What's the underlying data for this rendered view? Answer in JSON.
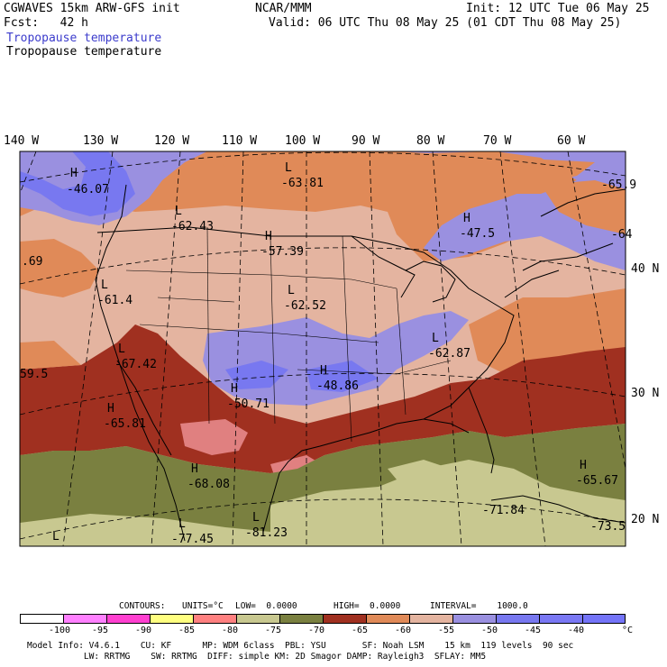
{
  "header": {
    "left1": "CGWAVES 15km ARW-GFS init",
    "left2": "Fcst:   42 h",
    "center": "NCAR/MMM",
    "init": "Init: 12 UTC Tue 06 May 25",
    "valid": "Valid: 06 UTC Thu 08 May 25 (01 CDT Thu 08 May 25)",
    "field_blue": "Tropopause temperature",
    "field_black": "Tropopause temperature"
  },
  "longitude_labels": [
    "140 W",
    "130 W",
    "120 W",
    "110 W",
    "100 W",
    "90 W",
    "80 W",
    "70 W",
    "60 W"
  ],
  "latitude_labels": [
    "40 N",
    "30 N",
    "20 N"
  ],
  "centers": [
    {
      "letter": "H",
      "value": "-46.07"
    },
    {
      "letter": "L",
      "value": "-63.81"
    },
    {
      "letter": "L",
      "value": "-62.43"
    },
    {
      "letter": "H",
      "value": "-57.39"
    },
    {
      "letter": "H",
      "value": "-47.5"
    },
    {
      "letter": "L",
      "value": "-62.52"
    },
    {
      "letter": "L",
      "value": "-61.4"
    },
    {
      "letter": "L",
      "value": "-67.42"
    },
    {
      "letter": "H",
      "value": "-48.86"
    },
    {
      "letter": "H",
      "value": "-50.71"
    },
    {
      "letter": "L",
      "value": "-62.87"
    },
    {
      "letter": "H",
      "value": "-65.81"
    },
    {
      "letter": "H",
      "value": "-68.08"
    },
    {
      "letter": "H",
      "value": "-65.67"
    },
    {
      "letter": "L",
      "value": "-81.23"
    },
    {
      "letter": "",
      "value": "-71.84"
    },
    {
      "letter": "L",
      "value": "-77.45"
    },
    {
      "letter": "",
      "value": "-73.5"
    },
    {
      "letter": "",
      "value": "-65.9"
    },
    {
      "letter": "",
      "value": "-64"
    },
    {
      "letter": "",
      "value": ".69"
    },
    {
      "letter": "",
      "value": "59.5"
    },
    {
      "letter": "L",
      "value": ""
    }
  ],
  "contour_info": {
    "contours": "CONTOURS:",
    "units": "UNITS=°C",
    "low": "LOW=  0.0000",
    "high": "HIGH=  0.0000",
    "interval": "INTERVAL=    1000.0"
  },
  "colorbar": {
    "levels": [
      "-100",
      "-95",
      "-90",
      "-85",
      "-80",
      "-75",
      "-70",
      "-65",
      "-60",
      "-55",
      "-50",
      "-45",
      "-40"
    ],
    "unit": "°C",
    "colors": [
      "#ffffff",
      "#ff80ff",
      "#ff40d0",
      "#ffff80",
      "#ff8080",
      "#c8c890",
      "#7a8040",
      "#a03020",
      "#e08a58",
      "#e4b4a0",
      "#9a90e0",
      "#7878f0",
      "#7a78f4",
      "#7474f8"
    ]
  },
  "footer": {
    "line1": "Model Info: V4.6.1    CU: KF      MP: WDM 6class  PBL: YSU       SF: Noah LSM    15 km  119 levels  90 sec",
    "line2": "           LW: RRTMG    SW: RRTMG  DIFF: simple KM: 2D Smagor DAMP: Rayleigh3  SFLAY: MM5"
  }
}
